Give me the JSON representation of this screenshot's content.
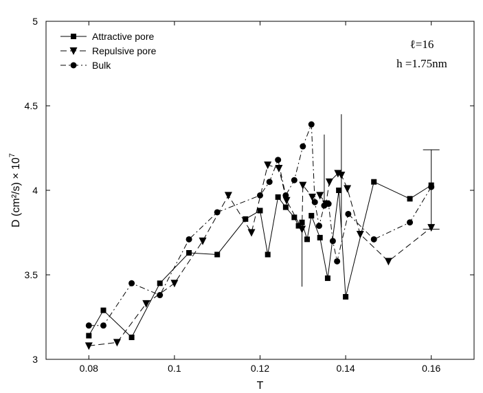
{
  "chart_data": {
    "type": "line",
    "xlabel": "T",
    "ylabel": "D (cm²/s) × 10",
    "ylabel_exp": "7",
    "xlim": [
      0.07,
      0.17
    ],
    "ylim": [
      3,
      5
    ],
    "xticks": [
      0.08,
      0.1,
      0.12,
      0.14,
      0.16
    ],
    "xtick_labels": [
      "0.08",
      "0.1",
      "0.12",
      "0.14",
      "0.16"
    ],
    "yticks": [
      3,
      3.5,
      4,
      4.5,
      5
    ],
    "ytick_labels": [
      "3",
      "3.5",
      "4",
      "4.5",
      "5"
    ],
    "grid": false,
    "legend_position": "top-left",
    "annotations": [
      "ℓ=16",
      "h =1.75nm"
    ],
    "series": [
      {
        "name": "Attractive pore",
        "line": "solid",
        "marker": "square",
        "points": [
          [
            0.08,
            3.14
          ],
          [
            0.0834,
            3.29
          ],
          [
            0.09,
            3.13
          ],
          [
            0.0966,
            3.45
          ],
          [
            0.1034,
            3.63
          ],
          [
            0.11,
            3.62
          ],
          [
            0.1166,
            3.83
          ],
          [
            0.12,
            3.88
          ],
          [
            0.1218,
            3.62
          ],
          [
            0.1242,
            3.96
          ],
          [
            0.126,
            3.9
          ],
          [
            0.128,
            3.84
          ],
          [
            0.129,
            3.79
          ],
          [
            0.1298,
            3.81
          ],
          [
            0.131,
            3.71
          ],
          [
            0.132,
            3.85
          ],
          [
            0.134,
            3.72
          ],
          [
            0.1358,
            3.48
          ],
          [
            0.1384,
            4.0
          ],
          [
            0.14,
            3.37
          ],
          [
            0.1466,
            4.05
          ],
          [
            0.155,
            3.95
          ],
          [
            0.16,
            4.03
          ]
        ]
      },
      {
        "name": "Repulsive pore",
        "line": "dashed",
        "marker": "triangle-down",
        "points": [
          [
            0.08,
            3.08
          ],
          [
            0.0866,
            3.1
          ],
          [
            0.0934,
            3.33
          ],
          [
            0.1,
            3.45
          ],
          [
            0.1066,
            3.7
          ],
          [
            0.1126,
            3.97
          ],
          [
            0.118,
            3.75
          ],
          [
            0.1218,
            4.15
          ],
          [
            0.1244,
            4.13
          ],
          [
            0.1262,
            3.94
          ],
          [
            0.1298,
            3.77
          ],
          [
            0.13,
            4.03
          ],
          [
            0.1322,
            3.96
          ],
          [
            0.134,
            3.97
          ],
          [
            0.1354,
            3.92
          ],
          [
            0.1362,
            4.05
          ],
          [
            0.1382,
            4.1
          ],
          [
            0.139,
            4.09
          ],
          [
            0.1404,
            4.01
          ],
          [
            0.1434,
            3.74
          ],
          [
            0.15,
            3.58
          ],
          [
            0.16,
            3.78
          ]
        ]
      },
      {
        "name": "Bulk",
        "line": "dashdot",
        "marker": "circle",
        "points": [
          [
            0.08,
            3.2
          ],
          [
            0.0834,
            3.2
          ],
          [
            0.09,
            3.45
          ],
          [
            0.0966,
            3.38
          ],
          [
            0.1034,
            3.71
          ],
          [
            0.11,
            3.87
          ],
          [
            0.12,
            3.97
          ],
          [
            0.1222,
            4.05
          ],
          [
            0.1242,
            4.18
          ],
          [
            0.126,
            3.97
          ],
          [
            0.128,
            4.06
          ],
          [
            0.13,
            4.26
          ],
          [
            0.132,
            4.39
          ],
          [
            0.1328,
            3.93
          ],
          [
            0.1338,
            3.79
          ],
          [
            0.135,
            3.91
          ],
          [
            0.136,
            3.92
          ],
          [
            0.137,
            3.7
          ],
          [
            0.138,
            3.58
          ],
          [
            0.1406,
            3.86
          ],
          [
            0.1466,
            3.71
          ],
          [
            0.155,
            3.81
          ],
          [
            0.16,
            4.02
          ]
        ]
      }
    ],
    "error_bars": [
      {
        "x": 0.1298,
        "low": 3.43,
        "high": 3.81
      },
      {
        "x": 0.135,
        "low": 3.91,
        "high": 4.33
      },
      {
        "x": 0.139,
        "low": 3.78,
        "high": 4.45
      },
      {
        "x": 0.16,
        "low": 3.77,
        "high": 4.24
      }
    ]
  }
}
